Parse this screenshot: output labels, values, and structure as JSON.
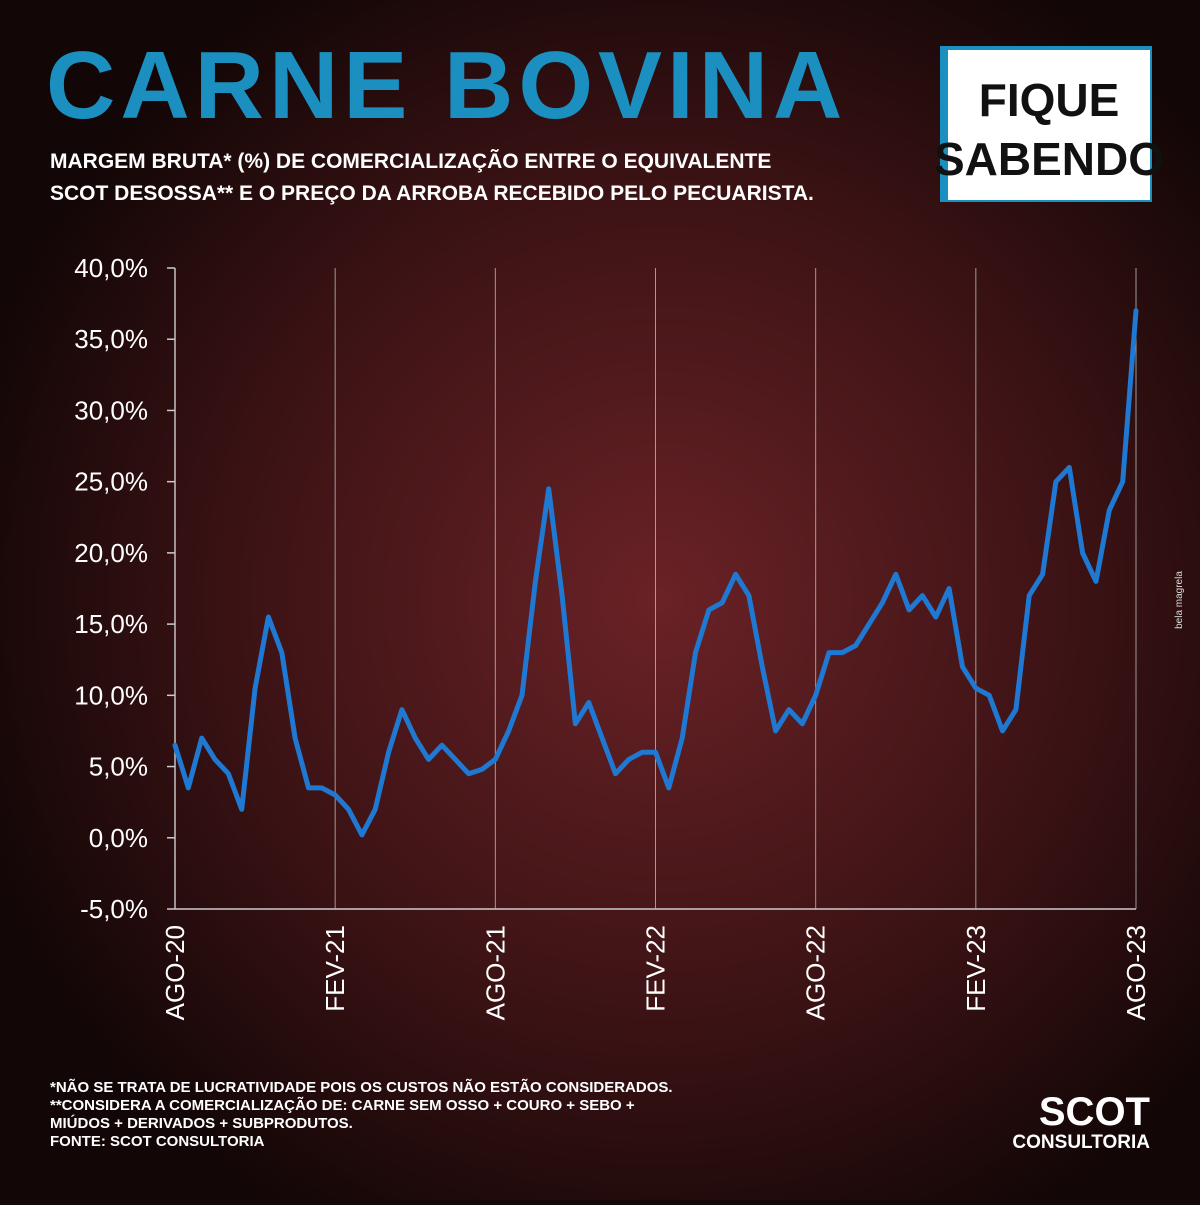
{
  "chart_data": {
    "type": "line",
    "title": "CARNE BOVINA",
    "subtitle": [
      "MARGEM BRUTA* (%) DE COMERCIALIZAÇÃO ENTRE O EQUIVALENTE",
      "SCOT DESOSSA** E O PREÇO DA ARROBA RECEBIDO PELO PECUARISTA."
    ],
    "categories": [
      "AGO-20",
      null,
      null,
      null,
      null,
      null,
      null,
      null,
      null,
      null,
      null,
      null,
      "FEV-21",
      null,
      null,
      null,
      null,
      null,
      null,
      null,
      null,
      null,
      null,
      null,
      "AGO-21",
      null,
      null,
      null,
      null,
      null,
      null,
      null,
      null,
      null,
      null,
      null,
      "FEV-22",
      null,
      null,
      null,
      null,
      null,
      null,
      null,
      null,
      null,
      null,
      null,
      "AGO-22",
      null,
      null,
      null,
      null,
      null,
      null,
      null,
      null,
      null,
      null,
      null,
      "FEV-23",
      null,
      null,
      null,
      null,
      null,
      null,
      null,
      null,
      null,
      null,
      null,
      "AGO-23"
    ],
    "values": [
      6.5,
      3.5,
      7,
      5.5,
      4.5,
      2,
      10.5,
      15.5,
      13,
      7,
      3.5,
      3.5,
      3,
      2,
      0.2,
      2,
      6,
      9,
      7,
      5.5,
      6.5,
      5.5,
      4.5,
      4.8,
      5.5,
      7.5,
      10,
      18,
      24.5,
      17,
      8,
      9.5,
      7,
      4.5,
      5.5,
      6,
      6,
      3.5,
      7,
      13,
      16,
      16.5,
      18.5,
      17,
      12,
      7.5,
      9,
      8,
      10,
      13,
      13,
      13.5,
      15,
      16.5,
      18.5,
      16,
      17,
      15.5,
      17.5,
      12,
      10.5,
      10,
      7.5,
      9,
      17,
      18.5,
      25,
      26,
      20,
      18,
      23,
      25,
      37
    ],
    "color": "#1f78d1",
    "ylim": [
      -5,
      40
    ],
    "yticks": [
      {
        "value": -5,
        "label": "-5,0%"
      },
      {
        "value": 0,
        "label": "0,0%"
      },
      {
        "value": 5,
        "label": "5,0%"
      },
      {
        "value": 10,
        "label": "10,0%"
      },
      {
        "value": 15,
        "label": "15,0%"
      },
      {
        "value": 20,
        "label": "20,0%"
      },
      {
        "value": 25,
        "label": "25,0%"
      },
      {
        "value": 30,
        "label": "30,0%"
      },
      {
        "value": 35,
        "label": "35,0%"
      },
      {
        "value": 40,
        "label": "40,0%"
      }
    ],
    "grid": true
  },
  "badge": [
    "FIQUE",
    "SABENDO"
  ],
  "footnotes": [
    "*NÃO SE TRATA DE LUCRATIVIDADE POIS OS CUSTOS NÃO ESTÃO CONSIDERADOS.",
    "**CONSIDERA A COMERCIALIZAÇÃO DE: CARNE SEM OSSO + COURO + SEBO +",
    "MIÚDOS + DERIVADOS + SUBPRODUTOS.",
    "FONTE: SCOT CONSULTORIA"
  ],
  "logo": {
    "name": "SCOT",
    "sub": "CONSULTORIA"
  },
  "credit": "bela magrela"
}
